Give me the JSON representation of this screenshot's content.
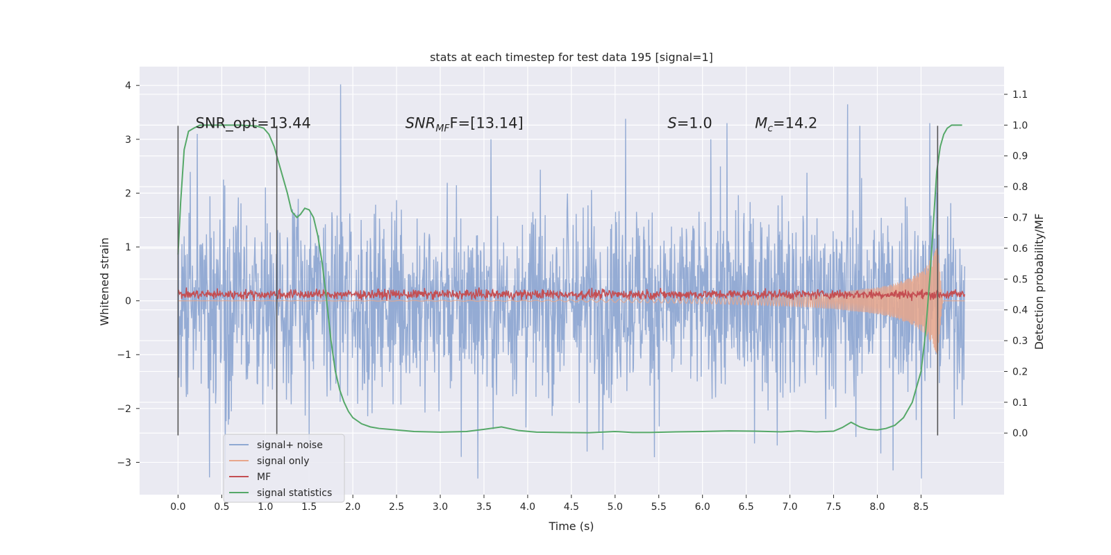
{
  "chart_data": {
    "type": "line",
    "title": "stats at each timestep for test data 195 [signal=1]",
    "xlabel": "Time (s)",
    "ylabel_left": "Whitened strain",
    "ylabel_right": "Detection probability/MF",
    "xlim": [
      -0.44,
      9.45
    ],
    "ylim_left": [
      -3.6,
      4.35
    ],
    "ylim_right": [
      -0.2,
      1.19
    ],
    "xticks": [
      0.0,
      0.5,
      1.0,
      1.5,
      2.0,
      2.5,
      3.0,
      3.5,
      4.0,
      4.5,
      5.0,
      5.5,
      6.0,
      6.5,
      7.0,
      7.5,
      8.0,
      8.5
    ],
    "xtick_labels": [
      "0.0",
      "0.5",
      "1.0",
      "1.5",
      "2.0",
      "2.5",
      "3.0",
      "3.5",
      "4.0",
      "4.5",
      "5.0",
      "5.5",
      "6.0",
      "6.5",
      "7.0",
      "7.5",
      "8.0",
      "8.5"
    ],
    "yticks_left": [
      -3,
      -2,
      -1,
      0,
      1,
      2,
      3,
      4
    ],
    "ytick_labels_left": [
      "−3",
      "−2",
      "−1",
      "0",
      "1",
      "2",
      "3",
      "4"
    ],
    "yticks_right": [
      0.0,
      0.1,
      0.2,
      0.3,
      0.4,
      0.5,
      0.6,
      0.7,
      0.8,
      0.9,
      1.0,
      1.1
    ],
    "ytick_labels_right": [
      "0.0",
      "0.1",
      "0.2",
      "0.3",
      "0.4",
      "0.5",
      "0.6",
      "0.7",
      "0.8",
      "0.9",
      "1.0",
      "1.1"
    ],
    "grid": true,
    "legend_position": "lower-left",
    "annotations": {
      "snr_opt": {
        "label": "SNR_opt=13.44",
        "x": 0.2,
        "y": 3.3
      },
      "snr_mf": {
        "prefix": "SNR",
        "subscript": "MF",
        "suffix": "F=[13.14]",
        "x": 2.6,
        "y": 3.3
      },
      "s": {
        "prefix": "S",
        "suffix": "=1.0",
        "x": 5.6,
        "y": 3.3
      },
      "mc": {
        "prefix": "M",
        "subscript": "c",
        "suffix": "=14.2",
        "x": 6.6,
        "y": 3.3
      }
    },
    "vertical_lines": [
      {
        "x": 0.0,
        "y0": -2.5,
        "y1": 3.25
      },
      {
        "x": 1.13,
        "y0": -2.5,
        "y1": 3.25
      },
      {
        "x": 8.69,
        "y0": -2.5,
        "y1": 3.25
      }
    ],
    "series": [
      {
        "name": "signal+ noise",
        "axis": "left",
        "color": "#8fa8d2",
        "x_range": [
          0.0,
          9.0
        ],
        "noise_envelope": {
          "typical_peak": 2.0,
          "max": 4.0,
          "min": -3.3
        },
        "notable_peaks": [
          {
            "x": 1.86,
            "y": 4.02
          },
          {
            "x": 7.66,
            "y": 3.65
          },
          {
            "x": 0.22,
            "y": 3.1
          },
          {
            "x": 5.12,
            "y": 3.38
          },
          {
            "x": 6.28,
            "y": 3.3
          },
          {
            "x": 7.8,
            "y": 3.25
          },
          {
            "x": 8.6,
            "y": 3.3
          },
          {
            "x": 0.36,
            "y": -3.28
          },
          {
            "x": 3.24,
            "y": -2.9
          },
          {
            "x": 8.18,
            "y": -3.15
          },
          {
            "x": 4.68,
            "y": -2.8
          }
        ]
      },
      {
        "name": "signal only",
        "axis": "left",
        "color": "#e8a68b",
        "envelope": {
          "x": [
            0.0,
            4.0,
            5.0,
            6.0,
            7.0,
            7.5,
            8.0,
            8.2,
            8.4,
            8.55,
            8.65,
            8.69,
            8.75,
            9.0
          ],
          "amplitude": [
            0.0,
            0.01,
            0.03,
            0.05,
            0.1,
            0.15,
            0.25,
            0.32,
            0.45,
            0.62,
            0.9,
            1.0,
            0.0,
            0.0
          ]
        }
      },
      {
        "name": "MF",
        "axis": "left",
        "color": "#c44e52",
        "baseline": 0.12,
        "spread": 0.1,
        "x_range": [
          0.0,
          9.0
        ]
      },
      {
        "name": "signal statistics",
        "axis": "right",
        "color": "#55a868",
        "x": [
          0.0,
          0.03,
          0.07,
          0.12,
          0.18,
          0.25,
          0.35,
          0.5,
          0.7,
          0.9,
          0.98,
          1.04,
          1.1,
          1.15,
          1.2,
          1.25,
          1.3,
          1.36,
          1.4,
          1.45,
          1.5,
          1.55,
          1.6,
          1.65,
          1.7,
          1.75,
          1.8,
          1.85,
          1.9,
          1.95,
          2.0,
          2.1,
          2.2,
          2.3,
          2.5,
          2.7,
          3.0,
          3.3,
          3.5,
          3.7,
          3.9,
          4.1,
          4.4,
          4.7,
          5.0,
          5.2,
          5.4,
          5.7,
          6.0,
          6.3,
          6.6,
          6.9,
          7.1,
          7.3,
          7.5,
          7.6,
          7.7,
          7.8,
          7.9,
          8.0,
          8.1,
          8.2,
          8.3,
          8.4,
          8.5,
          8.55,
          8.6,
          8.65,
          8.68,
          8.72,
          8.76,
          8.8,
          8.85,
          8.9,
          8.97
        ],
        "y": [
          0.58,
          0.75,
          0.92,
          0.98,
          0.99,
          1.0,
          1.0,
          1.0,
          1.0,
          0.997,
          0.99,
          0.97,
          0.93,
          0.88,
          0.83,
          0.78,
          0.72,
          0.7,
          0.71,
          0.73,
          0.725,
          0.7,
          0.64,
          0.55,
          0.43,
          0.3,
          0.2,
          0.14,
          0.1,
          0.07,
          0.05,
          0.03,
          0.02,
          0.015,
          0.01,
          0.005,
          0.003,
          0.005,
          0.012,
          0.02,
          0.008,
          0.003,
          0.002,
          0.001,
          0.005,
          0.002,
          0.002,
          0.004,
          0.005,
          0.007,
          0.006,
          0.004,
          0.007,
          0.004,
          0.006,
          0.018,
          0.035,
          0.02,
          0.012,
          0.01,
          0.015,
          0.025,
          0.05,
          0.1,
          0.2,
          0.32,
          0.5,
          0.72,
          0.85,
          0.93,
          0.97,
          0.99,
          1.0,
          1.0,
          1.0
        ]
      }
    ]
  }
}
